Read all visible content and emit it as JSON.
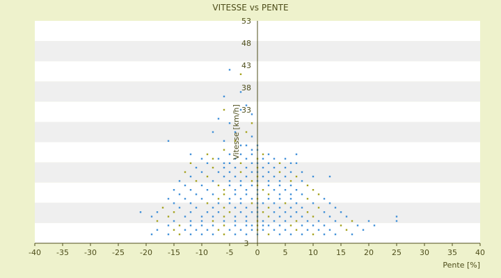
{
  "chart_data": {
    "type": "scatter",
    "title": "VITESSE vs PENTE",
    "xlabel": "Pente [%]",
    "ylabel": "Vitesse [km/h]",
    "xlim": [
      -40,
      40
    ],
    "ylim": [
      3,
      53
    ],
    "x_ticks": [
      "-40",
      "-35",
      "-30",
      "-25",
      "-20",
      "-15",
      "-10",
      "-5",
      "0",
      "5",
      "10",
      "15",
      "20",
      "25",
      "30",
      "35",
      "40"
    ],
    "y_ticks": [
      "53",
      "48",
      "43",
      "38",
      "33",
      "3"
    ],
    "grid": "horizontal bands",
    "colors": {
      "background": "#eef2cc",
      "band_light": "#ffffff",
      "band_dark": "#efefef",
      "axis": "#4d4d1a",
      "point_blue": "#3f8fd8",
      "point_olive": "#a5a21e"
    },
    "series": [
      {
        "type": "scatter",
        "points": [
          [
            -5,
            42
          ],
          [
            -3,
            41
          ],
          [
            -3,
            37
          ],
          [
            -6,
            36
          ],
          [
            -2,
            34
          ],
          [
            -6,
            33
          ],
          [
            -3,
            33
          ],
          [
            -1,
            32
          ],
          [
            -7,
            31
          ],
          [
            -1,
            30
          ],
          [
            -5,
            30
          ],
          [
            -8,
            28
          ],
          [
            -4,
            28
          ],
          [
            -2,
            28
          ],
          [
            -1,
            27
          ],
          [
            -16,
            26
          ],
          [
            -6,
            26
          ],
          [
            -4,
            26
          ],
          [
            -2,
            25
          ],
          [
            0,
            25
          ],
          [
            -3,
            25
          ],
          [
            -6,
            24
          ],
          [
            -1,
            24
          ],
          [
            0,
            24
          ],
          [
            -12,
            23
          ],
          [
            -9,
            23
          ],
          [
            -5,
            23
          ],
          [
            -3,
            23
          ],
          [
            -1,
            23
          ],
          [
            1,
            23
          ],
          [
            2,
            23
          ],
          [
            7,
            23
          ],
          [
            -10,
            22
          ],
          [
            -8,
            22
          ],
          [
            -7,
            22
          ],
          [
            -4,
            22
          ],
          [
            -2,
            22
          ],
          [
            0,
            22
          ],
          [
            1,
            22
          ],
          [
            3,
            22
          ],
          [
            5,
            22
          ],
          [
            -12,
            21
          ],
          [
            -9,
            21
          ],
          [
            -6,
            21
          ],
          [
            -5,
            21
          ],
          [
            -3,
            21
          ],
          [
            -1,
            21
          ],
          [
            0,
            21
          ],
          [
            2,
            21
          ],
          [
            4,
            21
          ],
          [
            6,
            21
          ],
          [
            7,
            21
          ],
          [
            -11,
            20
          ],
          [
            -8,
            20
          ],
          [
            -6,
            20
          ],
          [
            -4,
            20
          ],
          [
            -2,
            20
          ],
          [
            0,
            20
          ],
          [
            1,
            20
          ],
          [
            3,
            20
          ],
          [
            5,
            20
          ],
          [
            -13,
            19
          ],
          [
            -10,
            19
          ],
          [
            -7,
            19
          ],
          [
            -5,
            19
          ],
          [
            -3,
            19
          ],
          [
            -1,
            19
          ],
          [
            0,
            19
          ],
          [
            2,
            19
          ],
          [
            4,
            19
          ],
          [
            6,
            19
          ],
          [
            8,
            19
          ],
          [
            -12,
            18
          ],
          [
            -9,
            18
          ],
          [
            -6,
            18
          ],
          [
            -4,
            18
          ],
          [
            -2,
            18
          ],
          [
            0,
            18
          ],
          [
            1,
            18
          ],
          [
            3,
            18
          ],
          [
            5,
            18
          ],
          [
            7,
            18
          ],
          [
            10,
            18
          ],
          [
            13,
            18
          ],
          [
            -14,
            17
          ],
          [
            -11,
            17
          ],
          [
            -8,
            17
          ],
          [
            -5,
            17
          ],
          [
            -3,
            17
          ],
          [
            -1,
            17
          ],
          [
            0,
            17
          ],
          [
            2,
            17
          ],
          [
            4,
            17
          ],
          [
            6,
            17
          ],
          [
            8,
            17
          ],
          [
            -13,
            16
          ],
          [
            -10,
            16
          ],
          [
            -7,
            16
          ],
          [
            -5,
            16
          ],
          [
            -3,
            16
          ],
          [
            -1,
            16
          ],
          [
            0,
            16
          ],
          [
            2,
            16
          ],
          [
            4,
            16
          ],
          [
            6,
            16
          ],
          [
            9,
            16
          ],
          [
            -15,
            15
          ],
          [
            -12,
            15
          ],
          [
            -9,
            15
          ],
          [
            -6,
            15
          ],
          [
            -4,
            15
          ],
          [
            -2,
            15
          ],
          [
            0,
            15
          ],
          [
            1,
            15
          ],
          [
            3,
            15
          ],
          [
            5,
            15
          ],
          [
            7,
            15
          ],
          [
            10,
            15
          ],
          [
            -14,
            14
          ],
          [
            -11,
            14
          ],
          [
            -8,
            14
          ],
          [
            -6,
            14
          ],
          [
            -4,
            14
          ],
          [
            -2,
            14
          ],
          [
            0,
            14
          ],
          [
            2,
            14
          ],
          [
            4,
            14
          ],
          [
            6,
            14
          ],
          [
            8,
            14
          ],
          [
            11,
            14
          ],
          [
            -16,
            13
          ],
          [
            -13,
            13
          ],
          [
            -10,
            13
          ],
          [
            -7,
            13
          ],
          [
            -5,
            13
          ],
          [
            -3,
            13
          ],
          [
            -1,
            13
          ],
          [
            0,
            13
          ],
          [
            2,
            13
          ],
          [
            4,
            13
          ],
          [
            6,
            13
          ],
          [
            9,
            13
          ],
          [
            12,
            13
          ],
          [
            -15,
            12
          ],
          [
            -12,
            12
          ],
          [
            -9,
            12
          ],
          [
            -7,
            12
          ],
          [
            -5,
            12
          ],
          [
            -3,
            12
          ],
          [
            -1,
            12
          ],
          [
            0,
            12
          ],
          [
            1,
            12
          ],
          [
            3,
            12
          ],
          [
            5,
            12
          ],
          [
            7,
            12
          ],
          [
            10,
            12
          ],
          [
            13,
            12
          ],
          [
            -17,
            11
          ],
          [
            -14,
            11
          ],
          [
            -11,
            11
          ],
          [
            -8,
            11
          ],
          [
            -6,
            11
          ],
          [
            -4,
            11
          ],
          [
            -2,
            11
          ],
          [
            0,
            11
          ],
          [
            2,
            11
          ],
          [
            4,
            11
          ],
          [
            6,
            11
          ],
          [
            8,
            11
          ],
          [
            11,
            11
          ],
          [
            14,
            11
          ],
          [
            -21,
            10
          ],
          [
            -18,
            10
          ],
          [
            -15,
            10
          ],
          [
            -12,
            10
          ],
          [
            -9,
            10
          ],
          [
            -7,
            10
          ],
          [
            -5,
            10
          ],
          [
            -3,
            10
          ],
          [
            -1,
            10
          ],
          [
            0,
            10
          ],
          [
            1,
            10
          ],
          [
            3,
            10
          ],
          [
            5,
            10
          ],
          [
            7,
            10
          ],
          [
            9,
            10
          ],
          [
            12,
            10
          ],
          [
            15,
            10
          ],
          [
            -19,
            9
          ],
          [
            -16,
            9
          ],
          [
            -13,
            9
          ],
          [
            -10,
            9
          ],
          [
            -8,
            9
          ],
          [
            -6,
            9
          ],
          [
            -4,
            9
          ],
          [
            -2,
            9
          ],
          [
            0,
            9
          ],
          [
            2,
            9
          ],
          [
            4,
            9
          ],
          [
            6,
            9
          ],
          [
            8,
            9
          ],
          [
            10,
            9
          ],
          [
            13,
            9
          ],
          [
            16,
            9
          ],
          [
            25,
            9
          ],
          [
            -18,
            8
          ],
          [
            -15,
            8
          ],
          [
            -12,
            8
          ],
          [
            -10,
            8
          ],
          [
            -8,
            8
          ],
          [
            -6,
            8
          ],
          [
            -4,
            8
          ],
          [
            -2,
            8
          ],
          [
            0,
            8
          ],
          [
            1,
            8
          ],
          [
            3,
            8
          ],
          [
            5,
            8
          ],
          [
            7,
            8
          ],
          [
            9,
            8
          ],
          [
            11,
            8
          ],
          [
            14,
            8
          ],
          [
            17,
            8
          ],
          [
            20,
            8
          ],
          [
            25,
            8
          ],
          [
            -16,
            7
          ],
          [
            -14,
            7
          ],
          [
            -12,
            7
          ],
          [
            -10,
            7
          ],
          [
            -8,
            7
          ],
          [
            -6,
            7
          ],
          [
            -4,
            7
          ],
          [
            -2,
            7
          ],
          [
            -1,
            7
          ],
          [
            0,
            7
          ],
          [
            1,
            7
          ],
          [
            2,
            7
          ],
          [
            4,
            7
          ],
          [
            6,
            7
          ],
          [
            8,
            7
          ],
          [
            10,
            7
          ],
          [
            12,
            7
          ],
          [
            15,
            7
          ],
          [
            18,
            7
          ],
          [
            21,
            7
          ],
          [
            -18,
            6
          ],
          [
            -15,
            6
          ],
          [
            -13,
            6
          ],
          [
            -11,
            6
          ],
          [
            -9,
            6
          ],
          [
            -7,
            6
          ],
          [
            -5,
            6
          ],
          [
            -3,
            6
          ],
          [
            -1,
            6
          ],
          [
            0,
            6
          ],
          [
            1,
            6
          ],
          [
            3,
            6
          ],
          [
            5,
            6
          ],
          [
            7,
            6
          ],
          [
            9,
            6
          ],
          [
            11,
            6
          ],
          [
            13,
            6
          ],
          [
            16,
            6
          ],
          [
            19,
            6
          ],
          [
            -19,
            5
          ],
          [
            -16,
            5
          ],
          [
            -14,
            5
          ],
          [
            -12,
            5
          ],
          [
            -10,
            5
          ],
          [
            -8,
            5
          ],
          [
            -6,
            5
          ],
          [
            -4,
            5
          ],
          [
            -2,
            5
          ],
          [
            0,
            5
          ],
          [
            2,
            5
          ],
          [
            4,
            5
          ],
          [
            6,
            5
          ],
          [
            8,
            5
          ],
          [
            10,
            5
          ],
          [
            12,
            5
          ],
          [
            14,
            5
          ],
          [
            17,
            5
          ]
        ]
      }
    ]
  }
}
